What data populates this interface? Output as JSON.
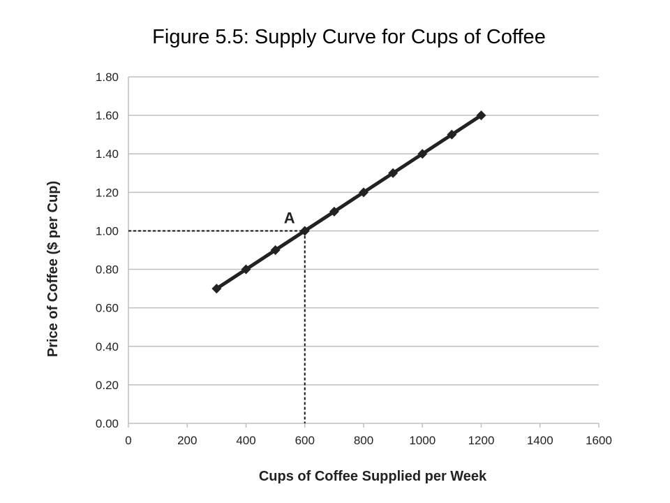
{
  "chart_data": {
    "type": "line",
    "title": "Figure 5.5: Supply Curve for Cups of Coffee",
    "xlabel": "Cups of Coffee Supplied per Week",
    "ylabel": "Price of Coffee ($ per Cup)",
    "xlim": [
      0,
      1600
    ],
    "ylim": [
      0,
      1.8
    ],
    "x_ticks": [
      "0",
      "200",
      "400",
      "600",
      "800",
      "1000",
      "1200",
      "1400",
      "1600"
    ],
    "y_ticks": [
      "0.00",
      "0.20",
      "0.40",
      "0.60",
      "0.80",
      "1.00",
      "1.20",
      "1.40",
      "1.60",
      "1.80"
    ],
    "grid": "horizontal",
    "legend": "none",
    "series": [
      {
        "x": [
          300,
          400,
          500,
          600,
          700,
          800,
          900,
          1000,
          1100,
          1200
        ],
        "y": [
          0.7,
          0.8,
          0.9,
          1.0,
          1.1,
          1.2,
          1.3,
          1.4,
          1.5,
          1.6
        ],
        "color": "#222222",
        "marker": "diamond"
      }
    ],
    "annotations": [
      {
        "label": "A",
        "x": 600,
        "y": 1.0,
        "dashed_guides": true
      }
    ],
    "colors": {
      "grid": "#bfbfbf",
      "line": "#222222",
      "text": "#222222"
    }
  }
}
